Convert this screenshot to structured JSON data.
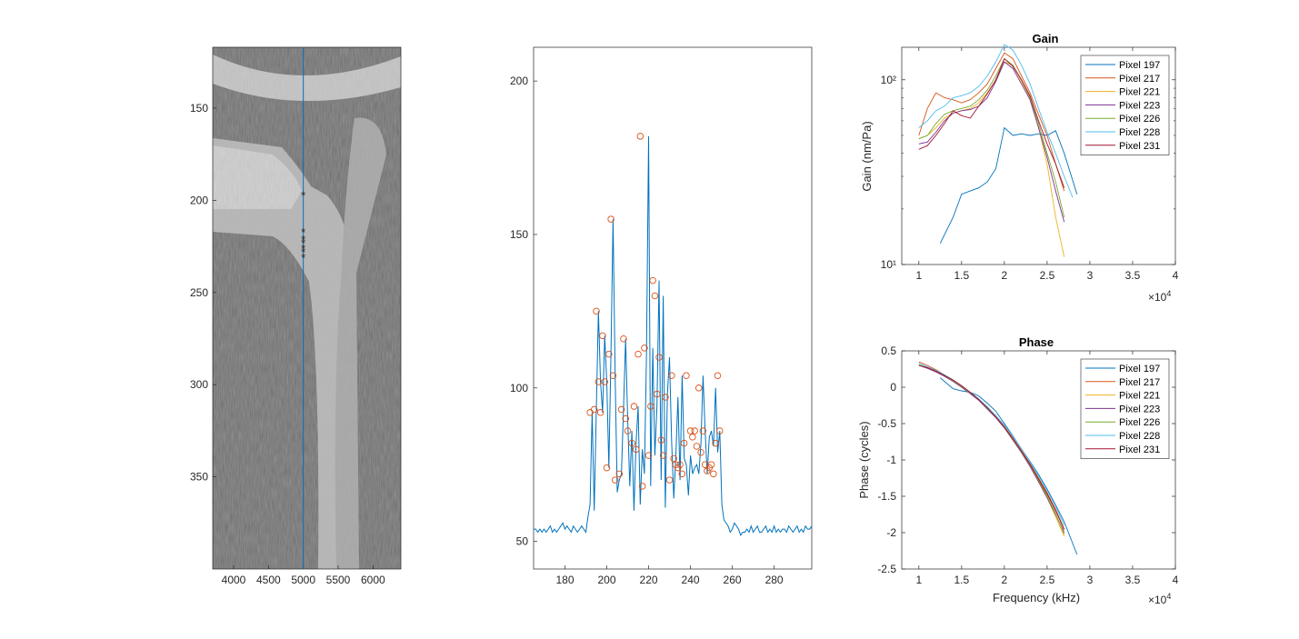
{
  "chart_data": [
    {
      "type": "heatmap",
      "title": "",
      "xlabel": "",
      "ylabel": "",
      "xlim": [
        3700,
        6400
      ],
      "ylim": [
        117,
        400
      ],
      "y_reversed": true,
      "x_ticks": [
        "4000",
        "4500",
        "5000",
        "5500",
        "6000"
      ],
      "x_tick_values": [
        4000,
        4500,
        5000,
        5500,
        6000
      ],
      "y_ticks": [
        "150",
        "200",
        "250",
        "300",
        "350"
      ],
      "y_tick_values": [
        150,
        200,
        250,
        300,
        350
      ],
      "colormap": "gray",
      "vertical_line_x": 5000,
      "vertical_line_color": "#0072bd",
      "markers": {
        "x": 5000,
        "y": [
          197,
          217,
          221,
          223,
          226,
          228,
          231
        ],
        "symbol": "*",
        "color": "#ff0000"
      }
    },
    {
      "type": "line",
      "title": "",
      "xlabel": "",
      "ylabel": "",
      "xlim": [
        165,
        298
      ],
      "ylim": [
        41,
        211
      ],
      "x_ticks": [
        "180",
        "200",
        "220",
        "240",
        "260",
        "280"
      ],
      "x_tick_values": [
        180,
        200,
        220,
        240,
        260,
        280
      ],
      "y_ticks": [
        "50",
        "100",
        "150",
        "200"
      ],
      "y_tick_values": [
        50,
        100,
        150,
        200
      ],
      "line_color": "#0072bd",
      "marker_color": "#d95319",
      "x": [
        165,
        166,
        167,
        168,
        169,
        170,
        171,
        172,
        173,
        174,
        175,
        176,
        177,
        178,
        179,
        180,
        181,
        182,
        183,
        184,
        185,
        186,
        187,
        188,
        189,
        190,
        191,
        192,
        193,
        194,
        195,
        196,
        197,
        198,
        199,
        200,
        201,
        202,
        203,
        204,
        205,
        206,
        207,
        208,
        209,
        210,
        211,
        212,
        213,
        214,
        215,
        216,
        217,
        218,
        219,
        220,
        221,
        222,
        223,
        224,
        225,
        226,
        227,
        228,
        229,
        230,
        231,
        232,
        233,
        234,
        235,
        236,
        237,
        238,
        239,
        240,
        241,
        242,
        243,
        244,
        245,
        246,
        247,
        248,
        249,
        250,
        251,
        252,
        253,
        254,
        255,
        256,
        257,
        258,
        259,
        260,
        261,
        262,
        263,
        264,
        265,
        266,
        267,
        268,
        269,
        270,
        271,
        272,
        273,
        274,
        275,
        276,
        277,
        278,
        279,
        280,
        281,
        282,
        283,
        284,
        285,
        286,
        287,
        288,
        289,
        290,
        291,
        292,
        293,
        294,
        295,
        296,
        297,
        298
      ],
      "values": [
        54,
        54,
        53,
        54,
        53,
        54,
        53,
        54,
        55,
        53,
        54,
        53,
        54,
        55,
        56,
        54,
        55,
        54,
        53,
        55,
        54,
        53,
        54,
        55,
        54,
        53,
        58,
        62,
        92,
        60,
        93,
        125,
        102,
        92,
        117,
        102,
        74,
        111,
        155,
        104,
        66,
        70,
        72,
        93,
        116,
        90,
        68,
        86,
        60,
        82,
        94,
        62,
        80,
        72,
        111,
        182,
        68,
        113,
        78,
        94,
        135,
        70,
        130,
        61,
        98,
        110,
        83,
        64,
        78,
        97,
        70,
        104,
        77,
        75,
        65,
        78,
        72,
        74,
        75,
        72,
        82,
        104,
        86,
        72,
        84,
        86,
        81,
        100,
        79,
        86,
        62,
        57,
        56,
        55,
        53,
        54,
        56,
        55,
        54,
        52,
        53,
        53,
        54,
        53,
        55,
        53,
        54,
        55,
        53,
        53,
        54,
        55,
        53,
        54,
        53,
        55,
        53,
        54,
        53,
        54,
        54,
        53,
        55,
        54,
        53,
        54,
        55,
        53,
        54,
        53,
        55,
        54,
        54,
        55
      ],
      "marker_x": [
        192,
        194,
        195,
        196,
        197,
        198,
        199,
        200,
        201,
        202,
        203,
        204,
        206,
        207,
        208,
        209,
        210,
        212,
        213,
        214,
        215,
        216,
        217,
        218,
        220,
        221,
        222,
        223,
        224,
        225,
        226,
        227,
        228,
        230,
        231,
        232,
        233,
        234,
        235,
        236,
        237,
        238,
        240,
        241,
        242,
        243,
        244,
        245,
        246,
        247,
        248,
        249,
        250,
        251,
        252,
        253,
        254
      ],
      "marker_y": [
        92,
        93,
        125,
        102,
        92,
        117,
        102,
        74,
        111,
        155,
        104,
        70,
        72,
        93,
        116,
        90,
        86,
        82,
        94,
        80,
        111,
        182,
        68,
        113,
        78,
        94,
        135,
        130,
        98,
        110,
        83,
        78,
        97,
        70,
        104,
        77,
        75,
        74,
        75,
        72,
        82,
        104,
        86,
        84,
        86,
        81,
        100,
        79,
        86,
        75,
        73,
        74,
        75,
        72,
        82,
        104,
        86
      ]
    },
    {
      "type": "line",
      "title": "Gain",
      "xlabel": "",
      "ylabel": "Gain (nm/Pa)",
      "x_scale_label": "×10",
      "x_scale_exp": "4",
      "xlim": [
        8000,
        40000
      ],
      "ylim": [
        10,
        150
      ],
      "y_scale": "log",
      "x_ticks": [
        "1",
        "1.5",
        "2",
        "2.5",
        "3",
        "3.5",
        "4"
      ],
      "x_tick_values": [
        10000,
        15000,
        20000,
        25000,
        30000,
        35000,
        40000
      ],
      "y_ticks": [
        "10¹",
        "10²"
      ],
      "y_tick_values": [
        10,
        100
      ],
      "legend_position": "top-right",
      "series": [
        {
          "name": "Pixel 197",
          "color": "#0072bd",
          "x": [
            12500,
            14000,
            15000,
            16000,
            17000,
            18000,
            19000,
            20000,
            21000,
            22000,
            23000,
            24000,
            25000,
            26000,
            27000,
            28500
          ],
          "values": [
            13,
            18,
            24,
            25,
            26,
            28,
            33,
            55,
            50,
            51,
            50,
            51,
            50,
            53,
            40,
            24
          ]
        },
        {
          "name": "Pixel 217",
          "color": "#d95319",
          "x": [
            10000,
            11000,
            12000,
            13000,
            14000,
            15000,
            16000,
            17000,
            18000,
            19000,
            20000,
            21000,
            22000,
            23000,
            24000,
            25000,
            26000,
            27000
          ],
          "values": [
            50,
            70,
            85,
            80,
            78,
            75,
            78,
            85,
            95,
            115,
            140,
            130,
            105,
            85,
            65,
            50,
            35,
            25
          ]
        },
        {
          "name": "Pixel 221",
          "color": "#edb120",
          "x": [
            10000,
            11000,
            12000,
            13000,
            14000,
            15000,
            16000,
            17000,
            18000,
            19000,
            20000,
            21000,
            22000,
            23000,
            24000,
            25000,
            26000,
            27000
          ],
          "values": [
            48,
            50,
            55,
            62,
            66,
            68,
            70,
            75,
            85,
            100,
            125,
            120,
            98,
            80,
            55,
            35,
            18,
            11
          ]
        },
        {
          "name": "Pixel 223",
          "color": "#7e2f8e",
          "x": [
            10000,
            11000,
            12000,
            13000,
            14000,
            15000,
            16000,
            17000,
            18000,
            19000,
            20000,
            21000,
            22000,
            23000,
            24000,
            25000,
            26000,
            27000
          ],
          "values": [
            45,
            46,
            52,
            60,
            66,
            68,
            69,
            72,
            80,
            98,
            125,
            115,
            95,
            78,
            55,
            38,
            25,
            17
          ]
        },
        {
          "name": "Pixel 226",
          "color": "#77ac30",
          "x": [
            10000,
            11000,
            12000,
            13000,
            14000,
            15000,
            16000,
            17000,
            18000,
            19000,
            20000,
            21000,
            22000,
            23000,
            24000,
            25000,
            26000,
            27000
          ],
          "values": [
            48,
            50,
            58,
            65,
            68,
            70,
            72,
            78,
            88,
            105,
            130,
            120,
            100,
            80,
            58,
            40,
            28,
            18
          ]
        },
        {
          "name": "Pixel 228",
          "color": "#4dbeee",
          "x": [
            10000,
            11000,
            12000,
            13000,
            14000,
            15000,
            16000,
            17000,
            18000,
            19000,
            20000,
            21000,
            22000,
            23000,
            24000,
            25000,
            26000,
            27000,
            28000
          ],
          "values": [
            55,
            60,
            68,
            72,
            80,
            82,
            85,
            92,
            105,
            125,
            155,
            145,
            120,
            95,
            70,
            52,
            40,
            30,
            23
          ]
        },
        {
          "name": "Pixel 231",
          "color": "#a2142f",
          "x": [
            10000,
            11000,
            12000,
            13000,
            14000,
            15000,
            16000,
            17000,
            18000,
            19000,
            20000,
            21000,
            22000,
            23000,
            24000,
            25000,
            26000,
            27000
          ],
          "values": [
            42,
            44,
            50,
            58,
            68,
            64,
            62,
            72,
            84,
            100,
            130,
            118,
            100,
            82,
            60,
            45,
            35,
            26
          ]
        }
      ]
    },
    {
      "type": "line",
      "title": "Phase",
      "xlabel": "Frequency (kHz)",
      "ylabel": "Phase (cycles)",
      "x_scale_label": "×10",
      "x_scale_exp": "4",
      "xlim": [
        8000,
        40000
      ],
      "ylim": [
        -2.5,
        0.5
      ],
      "x_ticks": [
        "1",
        "1.5",
        "2",
        "2.5",
        "3",
        "3.5",
        "4"
      ],
      "x_tick_values": [
        10000,
        15000,
        20000,
        25000,
        30000,
        35000,
        40000
      ],
      "y_ticks": [
        "0.5",
        "0",
        "-0.5",
        "-1",
        "-1.5",
        "-2",
        "-2.5"
      ],
      "y_tick_values": [
        0.5,
        0,
        -0.5,
        -1,
        -1.5,
        -2,
        -2.5
      ],
      "legend_position": "top-right",
      "series": [
        {
          "name": "Pixel 197",
          "color": "#0072bd",
          "x": [
            12500,
            14000,
            15000,
            16000,
            17000,
            18000,
            19000,
            20000,
            21000,
            22000,
            23000,
            24000,
            25000,
            26000,
            27000,
            28500
          ],
          "values": [
            0.13,
            -0.02,
            -0.05,
            -0.07,
            -0.12,
            -0.22,
            -0.33,
            -0.5,
            -0.67,
            -0.85,
            -1.02,
            -1.2,
            -1.4,
            -1.62,
            -1.85,
            -2.3
          ]
        },
        {
          "name": "Pixel 217",
          "color": "#d95319",
          "x": [
            10000,
            11000,
            12000,
            13000,
            14000,
            15000,
            16000,
            17000,
            18000,
            19000,
            20000,
            21000,
            22000,
            23000,
            24000,
            25000,
            26000,
            27000
          ],
          "values": [
            0.35,
            0.3,
            0.24,
            0.17,
            0.1,
            0.02,
            -0.07,
            -0.16,
            -0.28,
            -0.4,
            -0.54,
            -0.7,
            -0.87,
            -1.05,
            -1.25,
            -1.45,
            -1.68,
            -1.95
          ]
        },
        {
          "name": "Pixel 221",
          "color": "#edb120",
          "x": [
            10000,
            11000,
            12000,
            13000,
            14000,
            15000,
            16000,
            17000,
            18000,
            19000,
            20000,
            21000,
            22000,
            23000,
            24000,
            25000,
            26000,
            27000
          ],
          "values": [
            0.3,
            0.27,
            0.22,
            0.16,
            0.09,
            0.01,
            -0.08,
            -0.17,
            -0.29,
            -0.41,
            -0.55,
            -0.72,
            -0.9,
            -1.08,
            -1.3,
            -1.52,
            -1.78,
            -2.05
          ]
        },
        {
          "name": "Pixel 223",
          "color": "#7e2f8e",
          "x": [
            10000,
            11000,
            12000,
            13000,
            14000,
            15000,
            16000,
            17000,
            18000,
            19000,
            20000,
            21000,
            22000,
            23000,
            24000,
            25000,
            26000,
            27000
          ],
          "values": [
            0.3,
            0.26,
            0.21,
            0.15,
            0.08,
            0.0,
            -0.09,
            -0.18,
            -0.3,
            -0.42,
            -0.56,
            -0.73,
            -0.9,
            -1.09,
            -1.3,
            -1.52,
            -1.75,
            -2.0
          ]
        },
        {
          "name": "Pixel 226",
          "color": "#77ac30",
          "x": [
            10000,
            11000,
            12000,
            13000,
            14000,
            15000,
            16000,
            17000,
            18000,
            19000,
            20000,
            21000,
            22000,
            23000,
            24000,
            25000,
            26000,
            27000
          ],
          "values": [
            0.31,
            0.27,
            0.22,
            0.16,
            0.09,
            0.01,
            -0.08,
            -0.17,
            -0.29,
            -0.41,
            -0.55,
            -0.72,
            -0.89,
            -1.07,
            -1.28,
            -1.5,
            -1.74,
            -2.02
          ]
        },
        {
          "name": "Pixel 228",
          "color": "#4dbeee",
          "x": [
            10000,
            11000,
            12000,
            13000,
            14000,
            15000,
            16000,
            17000,
            18000,
            19000,
            20000,
            21000,
            22000,
            23000,
            24000,
            25000,
            26000,
            27000
          ],
          "values": [
            0.33,
            0.28,
            0.23,
            0.17,
            0.1,
            0.02,
            -0.07,
            -0.16,
            -0.27,
            -0.39,
            -0.52,
            -0.68,
            -0.85,
            -1.03,
            -1.22,
            -1.42,
            -1.64,
            -1.9
          ]
        },
        {
          "name": "Pixel 231",
          "color": "#a2142f",
          "x": [
            10000,
            11000,
            12000,
            13000,
            14000,
            15000,
            16000,
            17000,
            18000,
            19000,
            20000,
            21000,
            22000,
            23000,
            24000,
            25000,
            26000,
            27000
          ],
          "values": [
            0.3,
            0.27,
            0.22,
            0.16,
            0.1,
            0.02,
            -0.07,
            -0.17,
            -0.28,
            -0.41,
            -0.55,
            -0.71,
            -0.88,
            -1.06,
            -1.26,
            -1.47,
            -1.7,
            -1.96
          ]
        }
      ]
    }
  ]
}
